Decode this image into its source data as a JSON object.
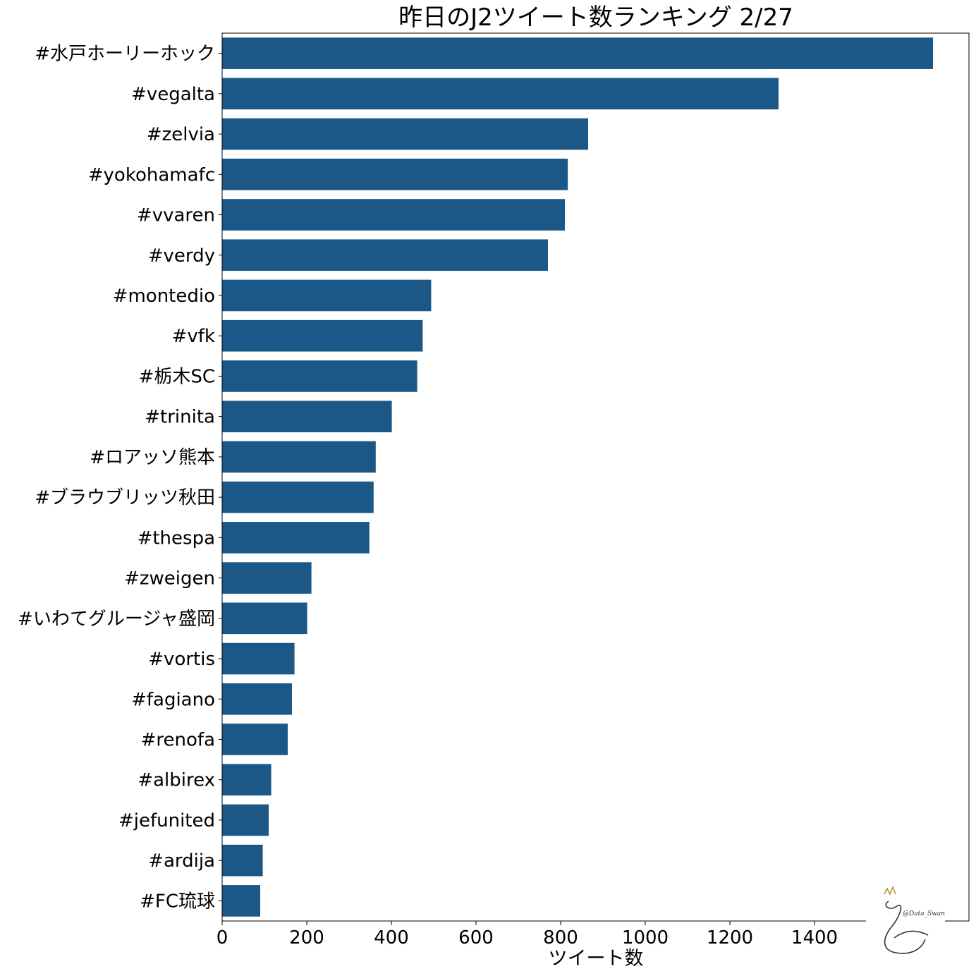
{
  "chart_data": {
    "type": "bar",
    "orientation": "horizontal",
    "title": "昨日のJ2ツイート数ランキング 2/27",
    "xlabel": "ツイート数",
    "ylabel": "",
    "xlim": [
      0,
      1765
    ],
    "xticks": [
      0,
      200,
      400,
      600,
      800,
      1000,
      1200,
      1400
    ],
    "grid": false,
    "bar_color": "#1b5887",
    "categories": [
      "#水戸ホーリーホック",
      "#vegalta",
      "#zelvia",
      "#yokohamafc",
      "#vvaren",
      "#verdy",
      "#montedio",
      "#vfk",
      "#栃木SC",
      "#trinita",
      "#ロアッソ熊本",
      "#ブラウブリッツ秋田",
      "#thespa",
      "#zweigen",
      "#いわてグルージャ盛岡",
      "#vortis",
      "#fagiano",
      "#renofa",
      "#albirex",
      "#jefunited",
      "#ardija",
      "#FC琉球"
    ],
    "values": [
      1680,
      1315,
      865,
      817,
      810,
      770,
      494,
      474,
      461,
      401,
      363,
      358,
      348,
      211,
      201,
      171,
      165,
      155,
      116,
      110,
      96,
      90
    ]
  },
  "watermark": {
    "text": "@Data_Swan",
    "icon": "swan-icon"
  }
}
